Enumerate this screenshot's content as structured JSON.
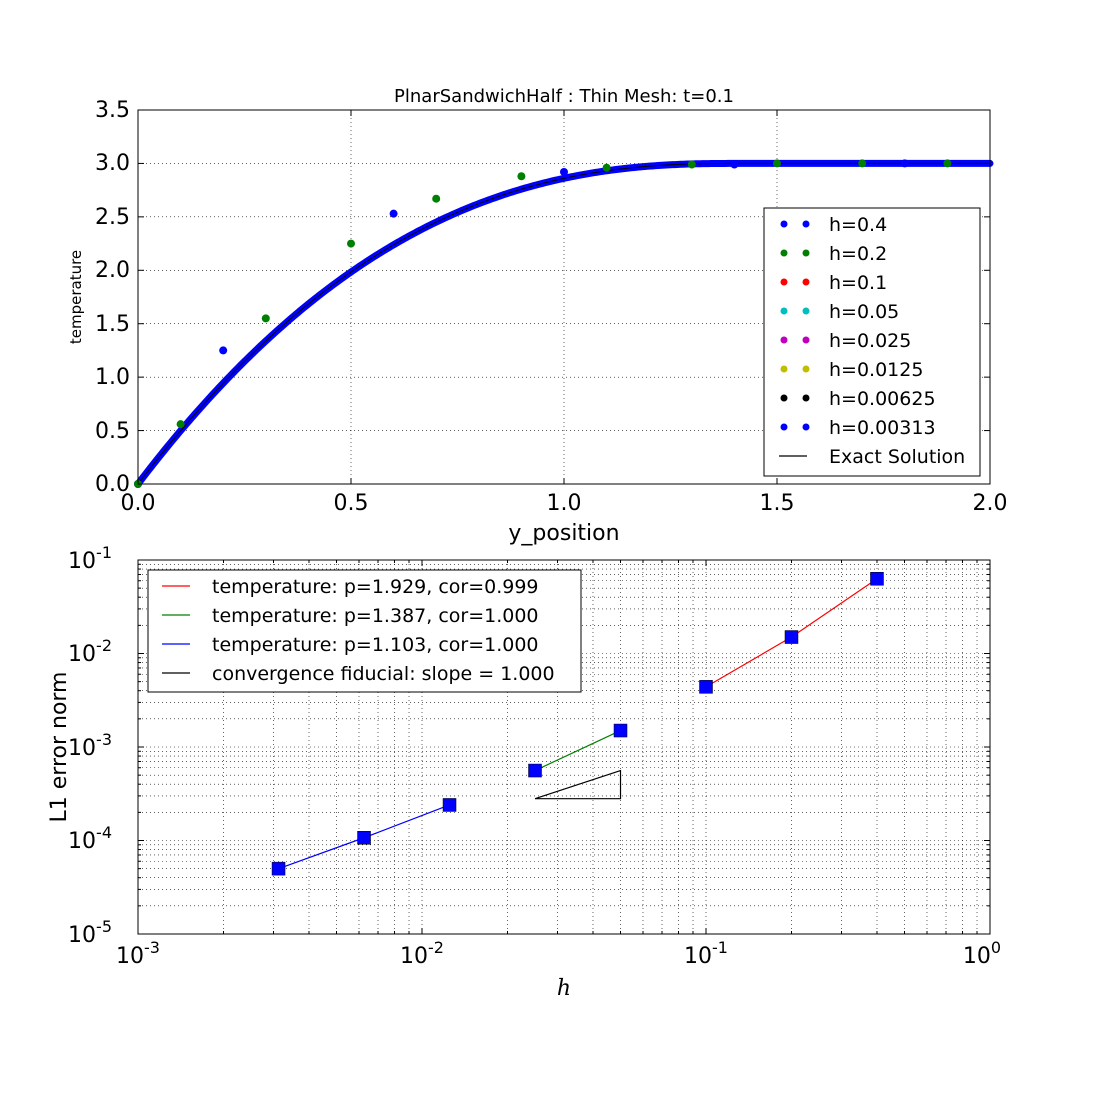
{
  "chart_data": [
    {
      "type": "scatter",
      "title": "PlnarSandwichHalf : Thin Mesh: t=0.1",
      "xlabel": "y_position",
      "ylabel": "temperature",
      "xlim": [
        0.0,
        2.0
      ],
      "ylim": [
        0.0,
        3.5
      ],
      "xticks": [
        "0.0",
        "0.5",
        "1.0",
        "1.5",
        "2.0"
      ],
      "yticks": [
        "0.0",
        "0.5",
        "1.0",
        "1.5",
        "2.0",
        "2.5",
        "3.0",
        "3.5"
      ],
      "grid": true,
      "legend_position": "lower-right",
      "series": [
        {
          "name": "h=0.4",
          "color": "#0000ff",
          "x": [
            0.0,
            0.2,
            0.6,
            1.0,
            1.4,
            1.8
          ],
          "y": [
            0.0,
            1.25,
            2.53,
            2.92,
            2.99,
            3.0
          ]
        },
        {
          "name": "h=0.2",
          "color": "#008000",
          "x": [
            0.0,
            0.1,
            0.3,
            0.5,
            0.7,
            0.9,
            1.1,
            1.3,
            1.5,
            1.7,
            1.9
          ],
          "y": [
            0.0,
            0.56,
            1.55,
            2.25,
            2.67,
            2.88,
            2.96,
            2.99,
            3.0,
            3.0,
            3.0
          ]
        },
        {
          "name": "h=0.1",
          "color": "#ff0000",
          "x": [],
          "y": []
        },
        {
          "name": "h=0.05",
          "color": "#00bfbf",
          "x": [],
          "y": []
        },
        {
          "name": "h=0.025",
          "color": "#bf00bf",
          "x": [],
          "y": []
        },
        {
          "name": "h=0.0125",
          "color": "#bfbf00",
          "x": [],
          "y": []
        },
        {
          "name": "h=0.00625",
          "color": "#000000",
          "x": [],
          "y": []
        },
        {
          "name": "h=0.00313",
          "color": "#0000ff",
          "x": [],
          "y": []
        },
        {
          "name": "Exact Solution",
          "color": "#000000",
          "x": [],
          "y": []
        }
      ]
    },
    {
      "type": "line",
      "xlabel": "h",
      "ylabel": "L1 error norm",
      "x_scale": "log",
      "y_scale": "log",
      "xlim": [
        0.001,
        1.0
      ],
      "ylim": [
        1e-05,
        0.1
      ],
      "xticks": [
        {
          "base": "10",
          "exp": "-3"
        },
        {
          "base": "10",
          "exp": "-2"
        },
        {
          "base": "10",
          "exp": "-1"
        },
        {
          "base": "10",
          "exp": "0"
        }
      ],
      "yticks": [
        {
          "base": "10",
          "exp": "-5"
        },
        {
          "base": "10",
          "exp": "-4"
        },
        {
          "base": "10",
          "exp": "-3"
        },
        {
          "base": "10",
          "exp": "-2"
        },
        {
          "base": "10",
          "exp": "-1"
        }
      ],
      "grid": true,
      "legend_position": "upper-left",
      "series": [
        {
          "name": "temperature: p=1.929, cor=0.999",
          "color": "#ff0000",
          "x": [
            0.1,
            0.2,
            0.4
          ],
          "y": [
            0.0044,
            0.015,
            0.063
          ]
        },
        {
          "name": "temperature: p=1.387, cor=1.000",
          "color": "#008000",
          "x": [
            0.025,
            0.05
          ],
          "y": [
            0.00056,
            0.0015
          ]
        },
        {
          "name": "temperature: p=1.103, cor=1.000",
          "color": "#0000ff",
          "x": [
            0.003125,
            0.00625,
            0.0125
          ],
          "y": [
            5e-05,
            0.000107,
            0.00024
          ]
        },
        {
          "name": "convergence fiducial: slope = 1.000",
          "color": "#000000",
          "x": [
            0.025,
            0.05,
            0.05,
            0.025
          ],
          "y": [
            0.00028,
            0.00028,
            0.00056,
            0.00028
          ]
        }
      ],
      "marker_color": "#0000ff"
    }
  ]
}
